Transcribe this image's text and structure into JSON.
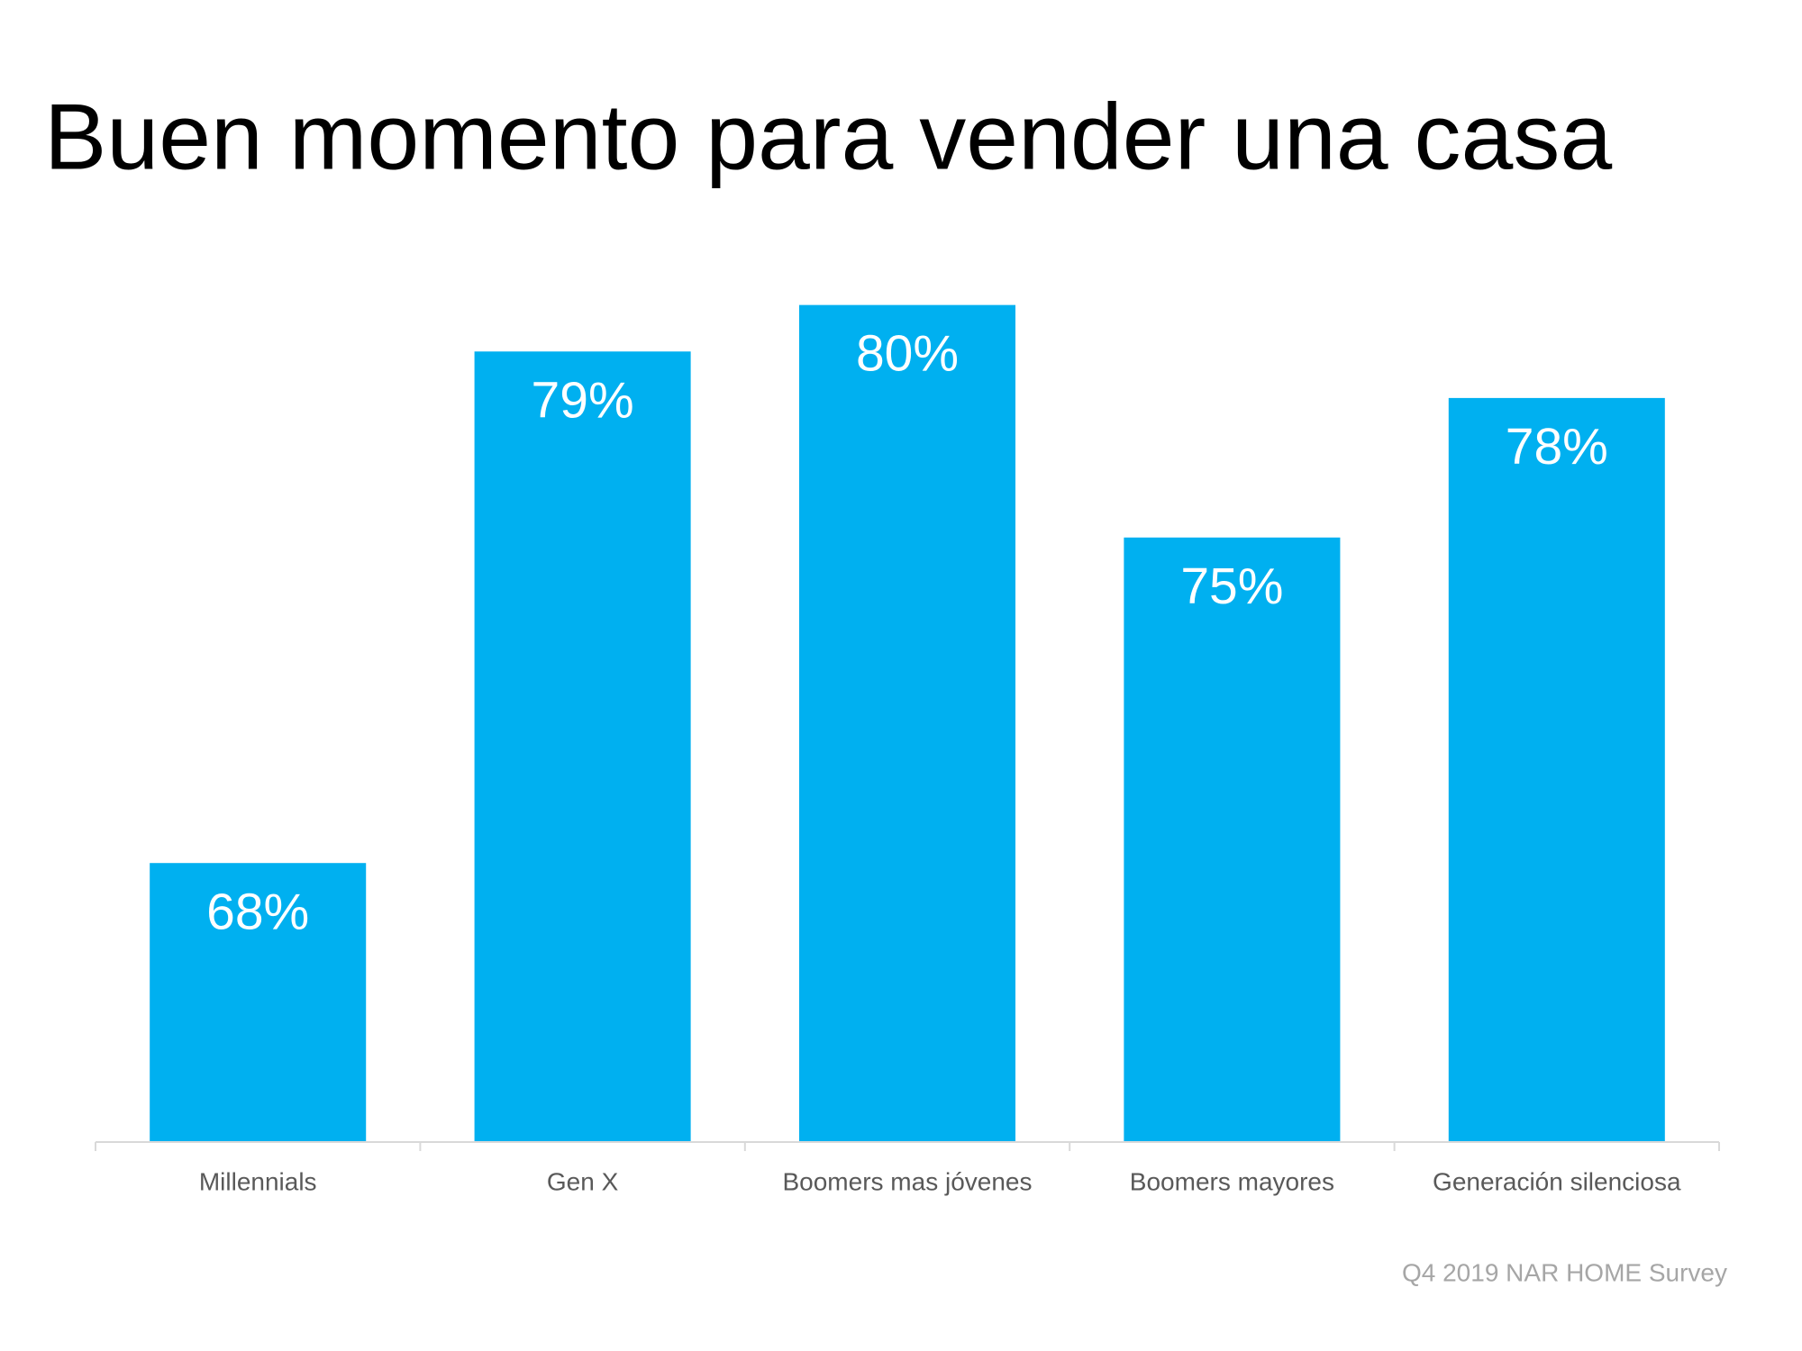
{
  "chart_data": {
    "type": "bar",
    "title": "Buen momento para vender una casa",
    "categories": [
      "Millennials",
      "Gen X",
      "Boomers mas jóvenes",
      "Boomers mayores",
      "Generación silenciosa"
    ],
    "values": [
      68,
      79,
      80,
      75,
      78
    ],
    "value_labels": [
      "68%",
      "79%",
      "80%",
      "75%",
      "78%"
    ],
    "color": "#00b0f0",
    "ylim": [
      62,
      81
    ],
    "source": "Q4 2019 NAR HOME Survey"
  }
}
